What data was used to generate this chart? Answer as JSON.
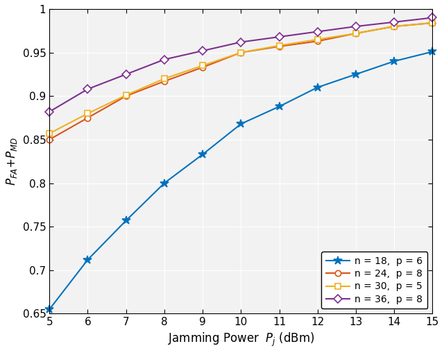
{
  "x": [
    5,
    6,
    7,
    8,
    9,
    10,
    11,
    12,
    13,
    14,
    15
  ],
  "series": [
    {
      "label": "n = 18,  p = 6",
      "color": "#0072BD",
      "marker": "*",
      "markersize": 9,
      "linewidth": 1.5,
      "y": [
        0.655,
        0.712,
        0.757,
        0.8,
        0.833,
        0.868,
        0.888,
        0.91,
        0.925,
        0.94,
        0.951
      ]
    },
    {
      "label": "n = 24,  p = 8",
      "color": "#D95319",
      "marker": "o",
      "markersize": 6,
      "linewidth": 1.5,
      "y": [
        0.85,
        0.875,
        0.9,
        0.917,
        0.933,
        0.95,
        0.957,
        0.963,
        0.972,
        0.98,
        0.984
      ]
    },
    {
      "label": "n = 30,  p = 5",
      "color": "#EDB120",
      "marker": "s",
      "markersize": 6,
      "linewidth": 1.5,
      "y": [
        0.857,
        0.88,
        0.901,
        0.92,
        0.935,
        0.95,
        0.958,
        0.965,
        0.972,
        0.98,
        0.984
      ]
    },
    {
      "label": "n = 36,  p = 8",
      "color": "#7E2F8E",
      "marker": "D",
      "markersize": 6,
      "linewidth": 1.5,
      "y": [
        0.882,
        0.908,
        0.925,
        0.942,
        0.952,
        0.962,
        0.968,
        0.974,
        0.98,
        0.985,
        0.99
      ]
    }
  ],
  "xlabel": "Jamming Power  $P_j$ (dBm)",
  "ylabel": "$P_{FA}$$+$$P_{MD}$",
  "xlim": [
    5,
    15
  ],
  "ylim": [
    0.65,
    1.0
  ],
  "yticks": [
    0.65,
    0.7,
    0.75,
    0.8,
    0.85,
    0.9,
    0.95,
    1.0
  ],
  "ytick_labels": [
    "0.65",
    "0.7",
    "0.75",
    "0.8",
    "0.85",
    "0.9",
    "0.95",
    "1"
  ],
  "xticks": [
    5,
    6,
    7,
    8,
    9,
    10,
    11,
    12,
    13,
    14,
    15
  ],
  "grid": true,
  "legend_loc": "lower right",
  "bg_color": "#f0f0f0",
  "tick_fontsize": 11,
  "label_fontsize": 12
}
